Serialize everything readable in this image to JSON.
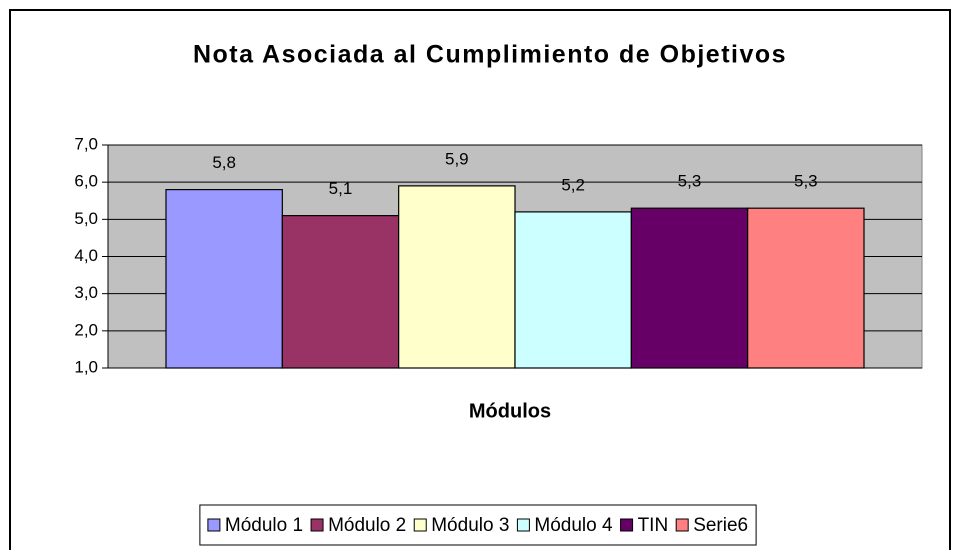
{
  "chart_data": {
    "type": "bar",
    "title": "Nota Asociada al Cumplimiento de Objetivos",
    "xlabel": "Módulos",
    "series": [
      {
        "name": "Módulo 1",
        "color": "#9999ff",
        "values": [
          5.8
        ],
        "value_labels": [
          "5,8"
        ]
      },
      {
        "name": "Módulo 2",
        "color": "#993366",
        "values": [
          5.1
        ],
        "value_labels": [
          "5,1"
        ]
      },
      {
        "name": "Módulo 3",
        "color": "#ffffcc",
        "values": [
          5.9
        ],
        "value_labels": [
          "5,9"
        ]
      },
      {
        "name": "Módulo 4",
        "color": "#ccffff",
        "values": [
          5.2
        ],
        "value_labels": [
          "5,2"
        ]
      },
      {
        "name": "TIN",
        "color": "#660066",
        "values": [
          5.3
        ],
        "value_labels": [
          "5,3"
        ]
      },
      {
        "name": "Serie6",
        "color": "#ff8080",
        "values": [
          5.3
        ],
        "value_labels": [
          "5,3"
        ]
      }
    ],
    "ylim": [
      1,
      7
    ],
    "yticks": [
      {
        "value": 1,
        "label": "1,0"
      },
      {
        "value": 2,
        "label": "2,0"
      },
      {
        "value": 3,
        "label": "3,0"
      },
      {
        "value": 4,
        "label": "4,0"
      },
      {
        "value": 5,
        "label": "5,0"
      },
      {
        "value": 6,
        "label": "6,0"
      },
      {
        "value": 7,
        "label": "7,0"
      }
    ],
    "grid": true,
    "legend": "bottom",
    "plot_background": "#c0c0c0"
  }
}
